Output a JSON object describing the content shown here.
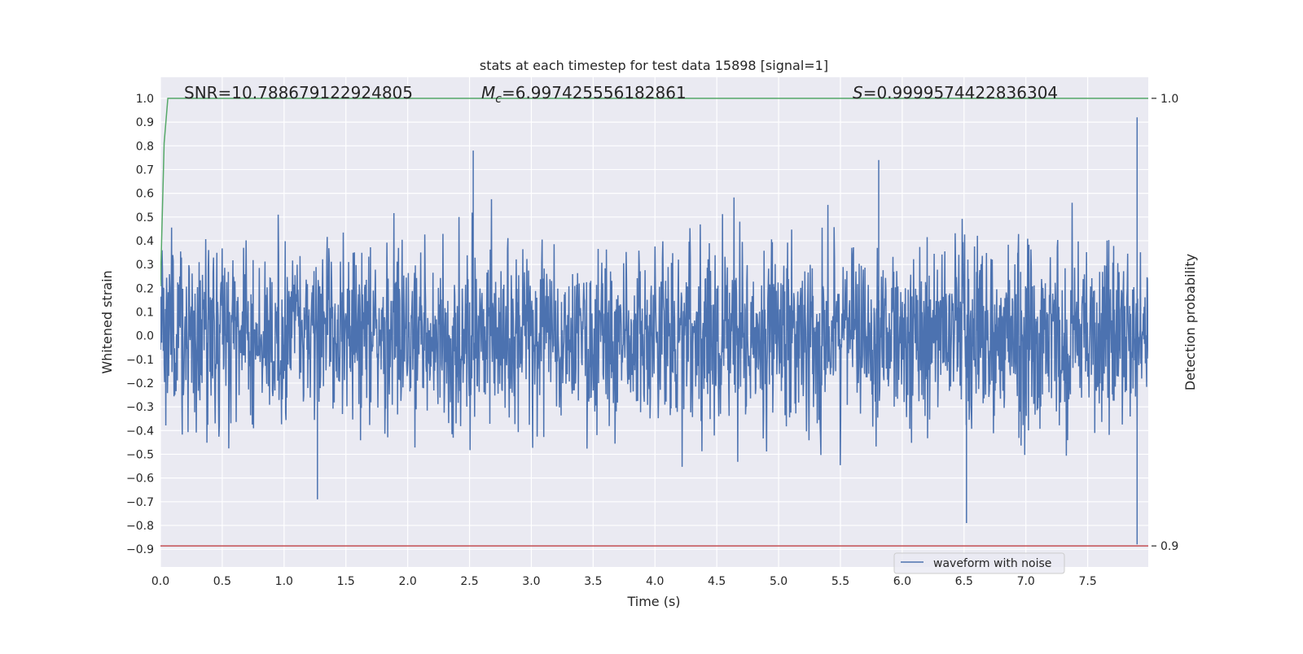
{
  "chart_data": {
    "type": "line",
    "title": "stats at each timestep for test data 15898 [signal=1]",
    "xlabel": "Time (s)",
    "ylabel": "Whitened strain",
    "y2label": "Detection probability",
    "xlim": [
      0.0,
      7.99
    ],
    "ylim": [
      -0.975,
      1.089
    ],
    "y2lim": [
      0.8953,
      1.0047
    ],
    "grid": true,
    "xticks": [
      "0.0",
      "0.5",
      "1.0",
      "1.5",
      "2.0",
      "2.5",
      "3.0",
      "3.5",
      "4.0",
      "4.5",
      "5.0",
      "5.5",
      "6.0",
      "6.5",
      "7.0",
      "7.5"
    ],
    "yticks": [
      "1.0",
      "0.9",
      "0.8",
      "0.7",
      "0.6",
      "0.5",
      "0.4",
      "0.3",
      "0.2",
      "0.1",
      "0.0",
      "−0.1",
      "−0.2",
      "−0.3",
      "−0.4",
      "−0.5",
      "−0.6",
      "−0.7",
      "−0.8",
      "−0.9"
    ],
    "y2ticks": [
      "1.0",
      "0.9"
    ],
    "annotations": {
      "snr": "SNR=10.788679122924805",
      "mc_label": "M",
      "mc_sub": "c",
      "mc_value": "=6.997425556182861",
      "s_label": "S",
      "s_value": "=0.9999574422836304"
    },
    "legend": {
      "entries": [
        "waveform with noise"
      ],
      "placement": "lower-right"
    },
    "series": [
      {
        "name": "waveform with noise",
        "axis": "left",
        "color": "#4c72b0",
        "kind": "noise",
        "duration_s": 7.99,
        "samples": 2400,
        "std": 0.19,
        "peaks": [
          [
            2.53,
            0.78
          ],
          [
            7.9,
            0.92
          ],
          [
            7.9,
            -0.88
          ],
          [
            6.52,
            -0.79
          ],
          [
            1.27,
            -0.69
          ],
          [
            5.81,
            0.74
          ]
        ]
      },
      {
        "name": "detection probability",
        "axis": "right",
        "color": "#55a868",
        "x": [
          0.0,
          0.03,
          0.06,
          7.99
        ],
        "y": [
          0.958,
          0.99,
          1.0,
          1.0
        ]
      },
      {
        "name": "threshold",
        "axis": "right",
        "color": "#c44e52",
        "x": [
          0.0,
          7.99
        ],
        "y": [
          0.9,
          0.9
        ]
      }
    ]
  }
}
